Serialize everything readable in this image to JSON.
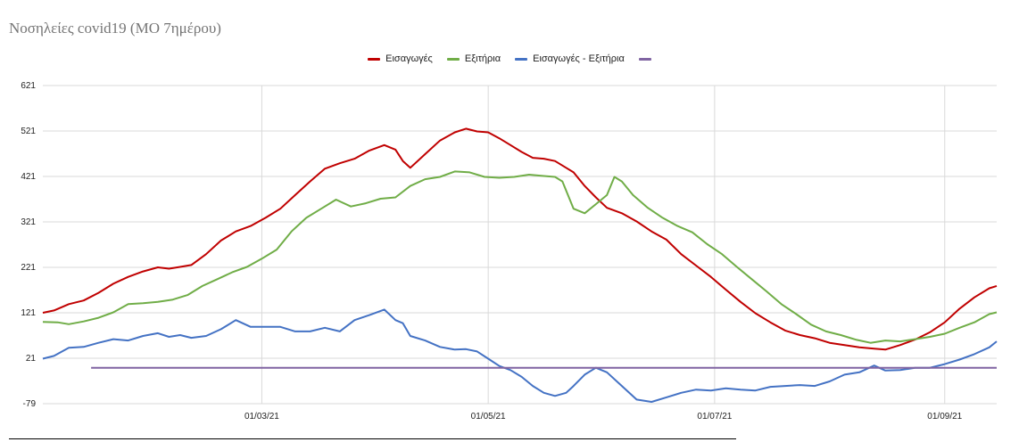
{
  "title": "Νοσηλείες covid19 (ΜΟ 7ημέρου)",
  "chart_data": {
    "type": "line",
    "title": "Νοσηλείες covid19 (ΜΟ 7ημέρου)",
    "xlabel": "",
    "ylabel": "",
    "ylim": [
      -79,
      621
    ],
    "yticks": [
      -79,
      21,
      121,
      221,
      321,
      421,
      521,
      621
    ],
    "grid": true,
    "legend_position": "top-center",
    "x_start": "2021-01-01",
    "x_end": "2021-09-15",
    "xticks": [
      {
        "date": "2021-03-01",
        "label": "01/03/21"
      },
      {
        "date": "2021-05-01",
        "label": "01/05/21"
      },
      {
        "date": "2021-07-01",
        "label": "01/07/21"
      },
      {
        "date": "2021-09-01",
        "label": "01/09/21"
      }
    ],
    "series": [
      {
        "name": "Εισαγωγές",
        "color": "#c00000",
        "points": [
          [
            "2021-01-01",
            121
          ],
          [
            "2021-01-04",
            126
          ],
          [
            "2021-01-08",
            140
          ],
          [
            "2021-01-12",
            148
          ],
          [
            "2021-01-16",
            165
          ],
          [
            "2021-01-20",
            185
          ],
          [
            "2021-01-24",
            200
          ],
          [
            "2021-01-28",
            212
          ],
          [
            "2021-02-01",
            221
          ],
          [
            "2021-02-04",
            218
          ],
          [
            "2021-02-07",
            222
          ],
          [
            "2021-02-10",
            226
          ],
          [
            "2021-02-14",
            250
          ],
          [
            "2021-02-18",
            280
          ],
          [
            "2021-02-22",
            300
          ],
          [
            "2021-02-26",
            312
          ],
          [
            "2021-03-02",
            330
          ],
          [
            "2021-03-06",
            350
          ],
          [
            "2021-03-10",
            380
          ],
          [
            "2021-03-14",
            410
          ],
          [
            "2021-03-18",
            438
          ],
          [
            "2021-03-22",
            450
          ],
          [
            "2021-03-26",
            460
          ],
          [
            "2021-03-30",
            478
          ],
          [
            "2021-04-03",
            490
          ],
          [
            "2021-04-06",
            480
          ],
          [
            "2021-04-08",
            455
          ],
          [
            "2021-04-10",
            440
          ],
          [
            "2021-04-14",
            470
          ],
          [
            "2021-04-18",
            500
          ],
          [
            "2021-04-22",
            518
          ],
          [
            "2021-04-25",
            526
          ],
          [
            "2021-04-28",
            520
          ],
          [
            "2021-05-01",
            518
          ],
          [
            "2021-05-04",
            505
          ],
          [
            "2021-05-07",
            490
          ],
          [
            "2021-05-10",
            475
          ],
          [
            "2021-05-13",
            462
          ],
          [
            "2021-05-16",
            460
          ],
          [
            "2021-05-19",
            455
          ],
          [
            "2021-05-22",
            440
          ],
          [
            "2021-05-24",
            430
          ],
          [
            "2021-05-27",
            400
          ],
          [
            "2021-05-30",
            375
          ],
          [
            "2021-06-02",
            352
          ],
          [
            "2021-06-06",
            340
          ],
          [
            "2021-06-10",
            322
          ],
          [
            "2021-06-14",
            300
          ],
          [
            "2021-06-18",
            282
          ],
          [
            "2021-06-22",
            250
          ],
          [
            "2021-06-26",
            225
          ],
          [
            "2021-06-30",
            200
          ],
          [
            "2021-07-04",
            172
          ],
          [
            "2021-07-08",
            145
          ],
          [
            "2021-07-12",
            120
          ],
          [
            "2021-07-16",
            100
          ],
          [
            "2021-07-20",
            82
          ],
          [
            "2021-07-24",
            72
          ],
          [
            "2021-07-28",
            65
          ],
          [
            "2021-08-01",
            55
          ],
          [
            "2021-08-05",
            50
          ],
          [
            "2021-08-09",
            45
          ],
          [
            "2021-08-13",
            42
          ],
          [
            "2021-08-16",
            40
          ],
          [
            "2021-08-20",
            50
          ],
          [
            "2021-08-24",
            62
          ],
          [
            "2021-08-28",
            78
          ],
          [
            "2021-09-01",
            100
          ],
          [
            "2021-09-05",
            130
          ],
          [
            "2021-09-09",
            155
          ],
          [
            "2021-09-13",
            175
          ],
          [
            "2021-09-15",
            180
          ],
          [
            "2021-09-15",
            180
          ]
        ]
      },
      {
        "name": "Εξιτήρια",
        "color": "#70ad47",
        "points": [
          [
            "2021-01-01",
            101
          ],
          [
            "2021-01-05",
            100
          ],
          [
            "2021-01-08",
            96
          ],
          [
            "2021-01-12",
            102
          ],
          [
            "2021-01-16",
            110
          ],
          [
            "2021-01-20",
            122
          ],
          [
            "2021-01-24",
            140
          ],
          [
            "2021-01-28",
            142
          ],
          [
            "2021-02-01",
            145
          ],
          [
            "2021-02-05",
            150
          ],
          [
            "2021-02-09",
            160
          ],
          [
            "2021-02-13",
            180
          ],
          [
            "2021-02-17",
            195
          ],
          [
            "2021-02-21",
            210
          ],
          [
            "2021-02-25",
            222
          ],
          [
            "2021-03-01",
            240
          ],
          [
            "2021-03-05",
            260
          ],
          [
            "2021-03-09",
            300
          ],
          [
            "2021-03-13",
            330
          ],
          [
            "2021-03-17",
            350
          ],
          [
            "2021-03-21",
            370
          ],
          [
            "2021-03-25",
            355
          ],
          [
            "2021-03-29",
            362
          ],
          [
            "2021-04-02",
            372
          ],
          [
            "2021-04-06",
            375
          ],
          [
            "2021-04-10",
            400
          ],
          [
            "2021-04-14",
            415
          ],
          [
            "2021-04-18",
            420
          ],
          [
            "2021-04-22",
            432
          ],
          [
            "2021-04-26",
            430
          ],
          [
            "2021-04-30",
            420
          ],
          [
            "2021-05-04",
            418
          ],
          [
            "2021-05-08",
            420
          ],
          [
            "2021-05-12",
            425
          ],
          [
            "2021-05-16",
            422
          ],
          [
            "2021-05-19",
            420
          ],
          [
            "2021-05-21",
            410
          ],
          [
            "2021-05-24",
            350
          ],
          [
            "2021-05-27",
            340
          ],
          [
            "2021-05-30",
            360
          ],
          [
            "2021-06-02",
            380
          ],
          [
            "2021-06-04",
            420
          ],
          [
            "2021-06-06",
            410
          ],
          [
            "2021-06-09",
            380
          ],
          [
            "2021-06-13",
            352
          ],
          [
            "2021-06-17",
            330
          ],
          [
            "2021-06-21",
            312
          ],
          [
            "2021-06-25",
            298
          ],
          [
            "2021-06-29",
            272
          ],
          [
            "2021-07-03",
            250
          ],
          [
            "2021-07-07",
            222
          ],
          [
            "2021-07-11",
            195
          ],
          [
            "2021-07-15",
            168
          ],
          [
            "2021-07-19",
            140
          ],
          [
            "2021-07-23",
            118
          ],
          [
            "2021-07-27",
            95
          ],
          [
            "2021-07-31",
            80
          ],
          [
            "2021-08-04",
            72
          ],
          [
            "2021-08-08",
            62
          ],
          [
            "2021-08-12",
            55
          ],
          [
            "2021-08-16",
            60
          ],
          [
            "2021-08-20",
            58
          ],
          [
            "2021-08-24",
            63
          ],
          [
            "2021-08-28",
            68
          ],
          [
            "2021-09-01",
            75
          ],
          [
            "2021-09-05",
            88
          ],
          [
            "2021-09-09",
            100
          ],
          [
            "2021-09-13",
            118
          ],
          [
            "2021-09-15",
            122
          ]
        ]
      },
      {
        "name": "Εισαγωγές - Εξιτήρια",
        "color": "#4472c4",
        "points": [
          [
            "2021-01-01",
            20
          ],
          [
            "2021-01-04",
            26
          ],
          [
            "2021-01-08",
            44
          ],
          [
            "2021-01-12",
            46
          ],
          [
            "2021-01-16",
            55
          ],
          [
            "2021-01-20",
            63
          ],
          [
            "2021-01-24",
            60
          ],
          [
            "2021-01-28",
            70
          ],
          [
            "2021-02-01",
            76
          ],
          [
            "2021-02-04",
            68
          ],
          [
            "2021-02-07",
            72
          ],
          [
            "2021-02-10",
            66
          ],
          [
            "2021-02-14",
            70
          ],
          [
            "2021-02-18",
            85
          ],
          [
            "2021-02-22",
            105
          ],
          [
            "2021-02-26",
            90
          ],
          [
            "2021-03-02",
            90
          ],
          [
            "2021-03-06",
            90
          ],
          [
            "2021-03-10",
            80
          ],
          [
            "2021-03-14",
            80
          ],
          [
            "2021-03-18",
            88
          ],
          [
            "2021-03-22",
            80
          ],
          [
            "2021-03-26",
            105
          ],
          [
            "2021-03-30",
            116
          ],
          [
            "2021-04-03",
            128
          ],
          [
            "2021-04-06",
            105
          ],
          [
            "2021-04-08",
            98
          ],
          [
            "2021-04-10",
            70
          ],
          [
            "2021-04-14",
            60
          ],
          [
            "2021-04-18",
            46
          ],
          [
            "2021-04-22",
            40
          ],
          [
            "2021-04-25",
            41
          ],
          [
            "2021-04-28",
            36
          ],
          [
            "2021-05-01",
            20
          ],
          [
            "2021-05-04",
            4
          ],
          [
            "2021-05-07",
            -5
          ],
          [
            "2021-05-10",
            -20
          ],
          [
            "2021-05-13",
            -40
          ],
          [
            "2021-05-16",
            -55
          ],
          [
            "2021-05-19",
            -62
          ],
          [
            "2021-05-22",
            -55
          ],
          [
            "2021-05-24",
            -40
          ],
          [
            "2021-05-27",
            -15
          ],
          [
            "2021-05-30",
            0
          ],
          [
            "2021-06-02",
            -10
          ],
          [
            "2021-06-06",
            -40
          ],
          [
            "2021-06-10",
            -70
          ],
          [
            "2021-06-14",
            -75
          ],
          [
            "2021-06-18",
            -65
          ],
          [
            "2021-06-22",
            -55
          ],
          [
            "2021-06-26",
            -48
          ],
          [
            "2021-06-30",
            -50
          ],
          [
            "2021-07-04",
            -45
          ],
          [
            "2021-07-08",
            -48
          ],
          [
            "2021-07-12",
            -50
          ],
          [
            "2021-07-16",
            -42
          ],
          [
            "2021-07-20",
            -40
          ],
          [
            "2021-07-24",
            -38
          ],
          [
            "2021-07-28",
            -40
          ],
          [
            "2021-08-01",
            -30
          ],
          [
            "2021-08-05",
            -15
          ],
          [
            "2021-08-09",
            -10
          ],
          [
            "2021-08-13",
            5
          ],
          [
            "2021-08-16",
            -6
          ],
          [
            "2021-08-20",
            -5
          ],
          [
            "2021-08-24",
            0
          ],
          [
            "2021-08-28",
            0
          ],
          [
            "2021-09-01",
            8
          ],
          [
            "2021-09-05",
            18
          ],
          [
            "2021-09-09",
            30
          ],
          [
            "2021-09-13",
            45
          ],
          [
            "2021-09-15",
            58
          ]
        ]
      },
      {
        "name": "",
        "color": "#8064a2",
        "points": [
          [
            "2021-01-14",
            0
          ],
          [
            "2021-09-15",
            0
          ]
        ]
      }
    ]
  }
}
